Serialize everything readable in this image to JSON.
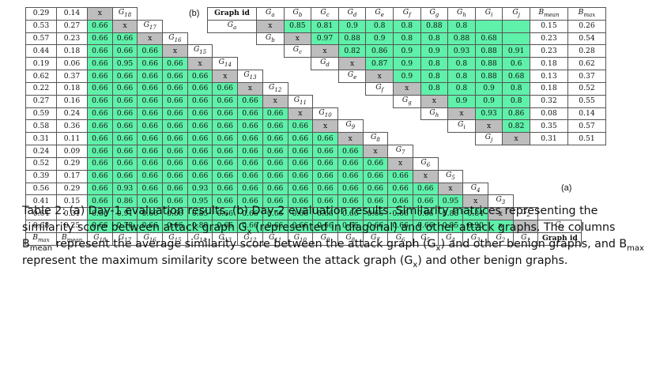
{
  "panel_labels": {
    "a": "(a)",
    "b": "(b)"
  },
  "caption": {
    "prefix": "Table 2: (a) Day-1 evaluation results, (b) Day-2 evaluation results. Similarity matrices representing the similarity score between attack graph G",
    "x_sub_1": "x",
    "part2": " (represented in diagonal) and other attack graphs. The columns B",
    "mean_sub": "mean",
    "part3": " represent the average similarity score between the attack graph (G",
    "x_sub_2": "x",
    "part4": ") and other benign graphs, and B",
    "max_sub": "max",
    "part5": " represent the maximum similarity score between the attack graph (G",
    "x_sub_3": "x",
    "part6": ") and other benign graphs."
  },
  "table_a": {
    "footer": [
      "Bmax",
      "Bmean",
      "G18",
      "G17",
      "G16",
      "G15",
      "G14",
      "G13",
      "G12",
      "G11",
      "G10",
      "G9",
      "G8",
      "G7",
      "G6",
      "G5",
      "G4",
      "G3",
      "G2",
      "G1",
      "Graph id"
    ],
    "rows": [
      {
        "bmax": "0.29",
        "bmean": "0.14",
        "cells": []
      },
      {
        "bmax": "0.53",
        "bmean": "0.27",
        "cells": [
          "0.66"
        ]
      },
      {
        "bmax": "0.57",
        "bmean": "0.23",
        "cells": [
          "0.66",
          "0.66"
        ]
      },
      {
        "bmax": "0.44",
        "bmean": "0.18",
        "cells": [
          "0.66",
          "0.66",
          "0.66"
        ]
      },
      {
        "bmax": "0.19",
        "bmean": "0.06",
        "cells": [
          "0.66",
          "0.95",
          "0.66",
          "0.66"
        ]
      },
      {
        "bmax": "0.62",
        "bmean": "0.37",
        "cells": [
          "0.66",
          "0.66",
          "0.66",
          "0.66",
          "0.66"
        ]
      },
      {
        "bmax": "0.22",
        "bmean": "0.18",
        "cells": [
          "0.66",
          "0.66",
          "0.66",
          "0.66",
          "0.66",
          "0.66"
        ]
      },
      {
        "bmax": "0.27",
        "bmean": "0.16",
        "cells": [
          "0.66",
          "0.66",
          "0.66",
          "0.66",
          "0.66",
          "0.66",
          "0.66"
        ]
      },
      {
        "bmax": "0.59",
        "bmean": "0.24",
        "cells": [
          "0.66",
          "0.66",
          "0.66",
          "0.66",
          "0.66",
          "0.66",
          "0.66",
          "0.66"
        ]
      },
      {
        "bmax": "0.58",
        "bmean": "0.36",
        "cells": [
          "0.66",
          "0.66",
          "0.66",
          "0.66",
          "0.66",
          "0.66",
          "0.66",
          "0.66",
          "0.66"
        ]
      },
      {
        "bmax": "0.31",
        "bmean": "0.11",
        "cells": [
          "0.66",
          "0.66",
          "0.66",
          "0.66",
          "0.66",
          "0.66",
          "0.66",
          "0.66",
          "0.66",
          "0.66"
        ]
      },
      {
        "bmax": "0.24",
        "bmean": "0.09",
        "cells": [
          "0.66",
          "0.66",
          "0.66",
          "0.66",
          "0.66",
          "0.66",
          "0.66",
          "0.66",
          "0.66",
          "0.66",
          "0.66"
        ]
      },
      {
        "bmax": "0.52",
        "bmean": "0.29",
        "cells": [
          "0.66",
          "0.66",
          "0.66",
          "0.66",
          "0.66",
          "0.66",
          "0.66",
          "0.66",
          "0.66",
          "0.66",
          "0.66",
          "0.66"
        ]
      },
      {
        "bmax": "0.39",
        "bmean": "0.17",
        "cells": [
          "0.66",
          "0.66",
          "0.66",
          "0.66",
          "0.66",
          "0.66",
          "0.66",
          "0.66",
          "0.66",
          "0.66",
          "0.66",
          "0.66",
          "0.66"
        ]
      },
      {
        "bmax": "0.56",
        "bmean": "0.29",
        "cells": [
          "0.66",
          "0.93",
          "0.66",
          "0.66",
          "0.93",
          "0.66",
          "0.66",
          "0.66",
          "0.66",
          "0.66",
          "0.66",
          "0.66",
          "0.66",
          "0.66"
        ]
      },
      {
        "bmax": "0.41",
        "bmean": "0.15",
        "cells": [
          "0.66",
          "0.86",
          "0.66",
          "0.66",
          "0.95",
          "0.66",
          "0.66",
          "0.66",
          "0.66",
          "0.66",
          "0.66",
          "0.66",
          "0.66",
          "0.66",
          "0.95"
        ]
      },
      {
        "bmax": "0.64",
        "bmean": "0.31",
        "cells": [
          "0.66",
          "0.91",
          "0.66",
          "0.66",
          "0.85",
          "0.66",
          "0.66",
          "0.66",
          "0.66",
          "0.66",
          "0.66",
          "0.66",
          "0.66",
          "0.66",
          "0.88",
          "0.84"
        ]
      },
      {
        "bmax": "0.68",
        "bmean": "0.25",
        "cells": [
          "0.66",
          "0.78",
          "0.66",
          "0.66",
          "0.88",
          "0.66",
          "0.66",
          "0.66",
          "0.66",
          "0.66",
          "0.66",
          "0.66",
          "0.66",
          "0.66",
          "0.85",
          "0.90",
          "x"
        ]
      }
    ],
    "diag_mark": "x",
    "diag_labels": [
      "G18",
      "G17",
      "G16",
      "G15",
      "G14",
      "G13",
      "G12",
      "G11",
      "G10",
      "G9",
      "G8",
      "G7",
      "G6",
      "G5",
      "G4",
      "G3",
      "G2",
      "G1"
    ]
  },
  "table_b": {
    "header": [
      "Graph id",
      "Ga",
      "Gb",
      "Gc",
      "Gd",
      "Ge",
      "Gf",
      "Gg",
      "Gh",
      "Gi",
      "Gj",
      "Bmean",
      "Bmax"
    ],
    "rows": [
      {
        "cells": [
          "0.85",
          "0.81",
          "0.9",
          "0.8",
          "0.8",
          "0.88",
          "0.8"
        ],
        "bmean": "0.15",
        "bmax": "0.26"
      },
      {
        "cells": [
          "0.97",
          "0.88",
          "0.9",
          "0.8",
          "0.8",
          "0.88",
          "0.68"
        ],
        "bmean": "0.23",
        "bmax": "0.54"
      },
      {
        "cells": [
          "0.82",
          "0.86",
          "0.9",
          "0.9",
          "0.93",
          "0.88",
          "0.91"
        ],
        "bmean": "0.23",
        "bmax": "0.28"
      },
      {
        "cells": [
          "0.87",
          "0.9",
          "0.8",
          "0.8",
          "0.88",
          "0.6"
        ],
        "bmean": "0.18",
        "bmax": "0.62"
      },
      {
        "cells": [
          "0.9",
          "0.8",
          "0.8",
          "0.88",
          "0.68"
        ],
        "bmean": "0.13",
        "bmax": "0.37"
      },
      {
        "cells": [
          "0.8",
          "0.8",
          "0.9",
          "0.8"
        ],
        "bmean": "0.18",
        "bmax": "0.52"
      },
      {
        "cells": [
          "0.9",
          "0.9",
          "0.8"
        ],
        "bmean": "0.32",
        "bmax": "0.55"
      },
      {
        "cells": [
          "0.93",
          "0.86"
        ],
        "bmean": "0.08",
        "bmax": "0.14"
      },
      {
        "cells": [
          "0.82"
        ],
        "bmean": "0.35",
        "bmax": "0.57"
      },
      {
        "cells": [],
        "bmean": "0.31",
        "bmax": "0.51"
      }
    ],
    "row_labels": [
      "Ga",
      "Gb",
      "Gc",
      "Gd",
      "Ge",
      "Gf",
      "Gg",
      "Gh",
      "Gi",
      "Gj"
    ],
    "diag_mark": "x"
  }
}
